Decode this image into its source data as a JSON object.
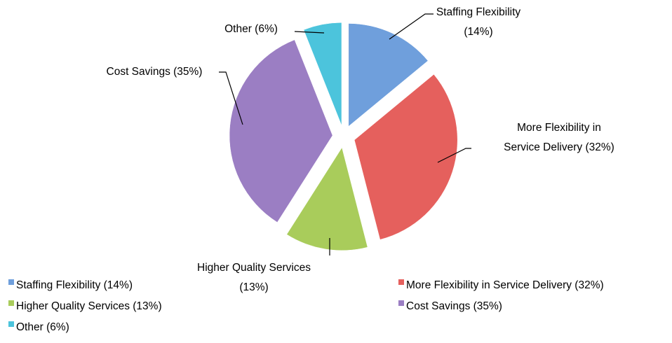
{
  "chart_data": {
    "type": "pie",
    "categories": [
      "Staffing Flexibility (14%)",
      "More Flexibility in Service Delivery (32%)",
      "Higher Quality Services (13%)",
      "Cost Savings (35%)",
      "Other (6%)"
    ],
    "values": [
      14,
      32,
      13,
      35,
      6
    ],
    "colors": [
      "#6f9fdc",
      "#e5605d",
      "#a9cc5b",
      "#9b7ec3",
      "#4cc4dc"
    ],
    "legend": "bottom"
  }
}
